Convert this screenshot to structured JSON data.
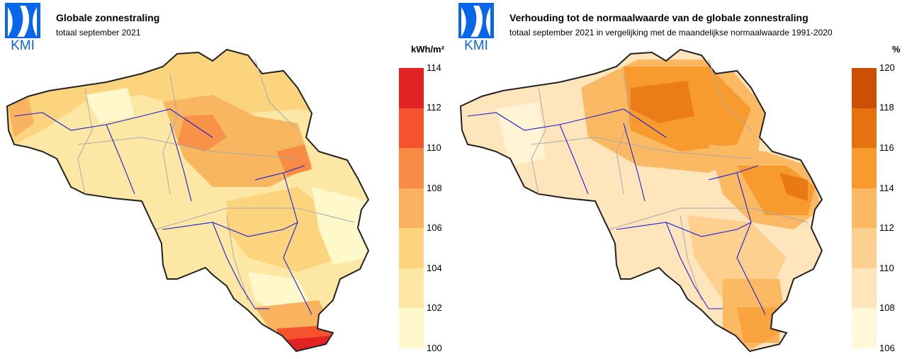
{
  "panels": [
    {
      "title": "Globale zonnestraling",
      "subtitle": "totaal september 2021",
      "unit": "kWh/m²",
      "logo_text": "KMI",
      "legend": {
        "ticks": [
          "114",
          "112",
          "110",
          "108",
          "106",
          "104",
          "102",
          "100"
        ],
        "colors": [
          "#e32323",
          "#f5532d",
          "#f88c45",
          "#f9b35e",
          "#fcd47d",
          "#fde7a4",
          "#fef8cb"
        ]
      }
    },
    {
      "title": "Verhouding tot de normaalwaarde van de globale zonnestraling",
      "subtitle": "totaal september 2021 in vergelijking met de maandelijkse normaalwaarde 1991-2020",
      "unit": "%",
      "logo_text": "KMI",
      "legend": {
        "ticks": [
          "120",
          "118",
          "116",
          "114",
          "112",
          "110",
          "108",
          "106"
        ],
        "colors": [
          "#cd4f06",
          "#e5710f",
          "#f89b2e",
          "#fbb964",
          "#fdd08f",
          "#fee5bb",
          "#fff8d9"
        ]
      }
    }
  ],
  "logo_color": "#0a66e8"
}
